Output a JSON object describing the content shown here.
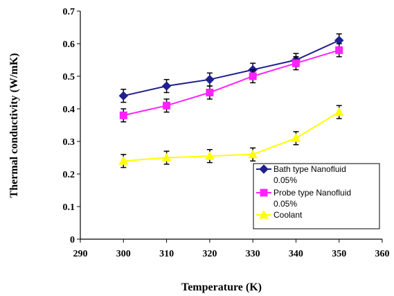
{
  "chart_data": {
    "type": "line",
    "xlabel": "Temperature (K)",
    "ylabel": "Thermal conductivity (W/mK)",
    "xlim": [
      290,
      360
    ],
    "ylim": [
      0,
      0.7
    ],
    "x_ticks": [
      "290",
      "300",
      "310",
      "320",
      "330",
      "340",
      "350",
      "360"
    ],
    "y_ticks": [
      "0",
      "0.1",
      "0.2",
      "0.3",
      "0.4",
      "0.5",
      "0.6",
      "0.7"
    ],
    "grid": false,
    "legend_position": "bottom-right",
    "x": [
      300,
      310,
      320,
      330,
      340,
      350
    ],
    "series": [
      {
        "name_line1": "Bath type Nanofluid",
        "name_line2": "0.05%",
        "color": "#1f1f8f",
        "marker": "diamond",
        "values": [
          0.44,
          0.47,
          0.49,
          0.52,
          0.55,
          0.61
        ],
        "error": [
          0.02,
          0.02,
          0.02,
          0.02,
          0.02,
          0.02
        ]
      },
      {
        "name_line1": "Probe type Nanofluid",
        "name_line2": "0.05%",
        "color": "#ff22ff",
        "marker": "square",
        "values": [
          0.38,
          0.41,
          0.45,
          0.5,
          0.54,
          0.58
        ],
        "error": [
          0.02,
          0.02,
          0.02,
          0.02,
          0.02,
          0.02
        ]
      },
      {
        "name_line1": "Coolant",
        "name_line2": "",
        "color": "#ffff00",
        "marker": "triangle",
        "values": [
          0.24,
          0.25,
          0.255,
          0.26,
          0.31,
          0.39
        ],
        "error": [
          0.02,
          0.02,
          0.02,
          0.02,
          0.02,
          0.02
        ]
      }
    ]
  }
}
